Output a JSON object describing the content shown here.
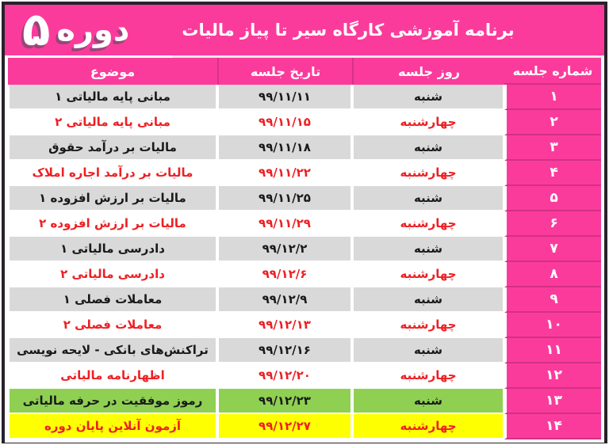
{
  "banner": {
    "title": "برنامه آموزشی کارگاه سیر تا پیاز مالیات",
    "badge_word": "دوره",
    "badge_digit": "۵"
  },
  "table": {
    "headers": {
      "number": "شماره جلسه",
      "day": "روز جلسه",
      "date": "تاریخ جلسه",
      "subject": "موضوع"
    },
    "rows": [
      {
        "number": "۱",
        "day": "شنبه",
        "date": "۹۹/۱۱/۱۱",
        "subject": "مبانی پایه مالیاتی ۱",
        "highlight": null
      },
      {
        "number": "۲",
        "day": "چهارشنبه",
        "date": "۹۹/۱۱/۱۵",
        "subject": "مبانی پایه مالیاتی ۲",
        "highlight": null
      },
      {
        "number": "۳",
        "day": "شنبه",
        "date": "۹۹/۱۱/۱۸",
        "subject": "مالیات بر درآمد حقوق",
        "highlight": null
      },
      {
        "number": "۴",
        "day": "چهارشنبه",
        "date": "۹۹/۱۱/۲۲",
        "subject": "مالیات بر درآمد اجاره املاک",
        "highlight": null
      },
      {
        "number": "۵",
        "day": "شنبه",
        "date": "۹۹/۱۱/۲۵",
        "subject": "مالیات بر ارزش افزوده ۱",
        "highlight": null
      },
      {
        "number": "۶",
        "day": "چهارشنبه",
        "date": "۹۹/۱۱/۲۹",
        "subject": "مالیات بر ارزش افزوده ۲",
        "highlight": null
      },
      {
        "number": "۷",
        "day": "شنبه",
        "date": "۹۹/۱۲/۲",
        "subject": "دادرسی مالیاتی ۱",
        "highlight": null
      },
      {
        "number": "۸",
        "day": "چهارشنبه",
        "date": "۹۹/۱۲/۶",
        "subject": "دادرسی مالیاتی ۲",
        "highlight": null
      },
      {
        "number": "۹",
        "day": "شنبه",
        "date": "۹۹/۱۲/۹",
        "subject": "معاملات فصلی ۱",
        "highlight": null
      },
      {
        "number": "۱۰",
        "day": "چهارشنبه",
        "date": "۹۹/۱۲/۱۳",
        "subject": "معاملات فصلی ۲",
        "highlight": null
      },
      {
        "number": "۱۱",
        "day": "شنبه",
        "date": "۹۹/۱۲/۱۶",
        "subject": "تراکنش‌های بانکی - لایحه نویسی",
        "highlight": null
      },
      {
        "number": "۱۲",
        "day": "چهارشنبه",
        "date": "۹۹/۱۲/۲۰",
        "subject": "اظهارنامه مالیاتی",
        "highlight": null
      },
      {
        "number": "۱۳",
        "day": "شنبه",
        "date": "۹۹/۱۲/۲۳",
        "subject": "رموز موفقیت در حرفه مالیاتی",
        "highlight": "green"
      },
      {
        "number": "۱۴",
        "day": "چهارشنبه",
        "date": "۹۹/۱۲/۲۷",
        "subject": "آزمون آنلاین پایان دوره",
        "highlight": "yellow"
      }
    ]
  },
  "colors": {
    "pink": "#fb3b9c",
    "red": "#ed2024",
    "gray_row": "#d9d9d9",
    "green_row": "#8fd053",
    "yellow_row": "#feff00",
    "frame": "#27222a",
    "text_dark": "#1a1a1a"
  }
}
